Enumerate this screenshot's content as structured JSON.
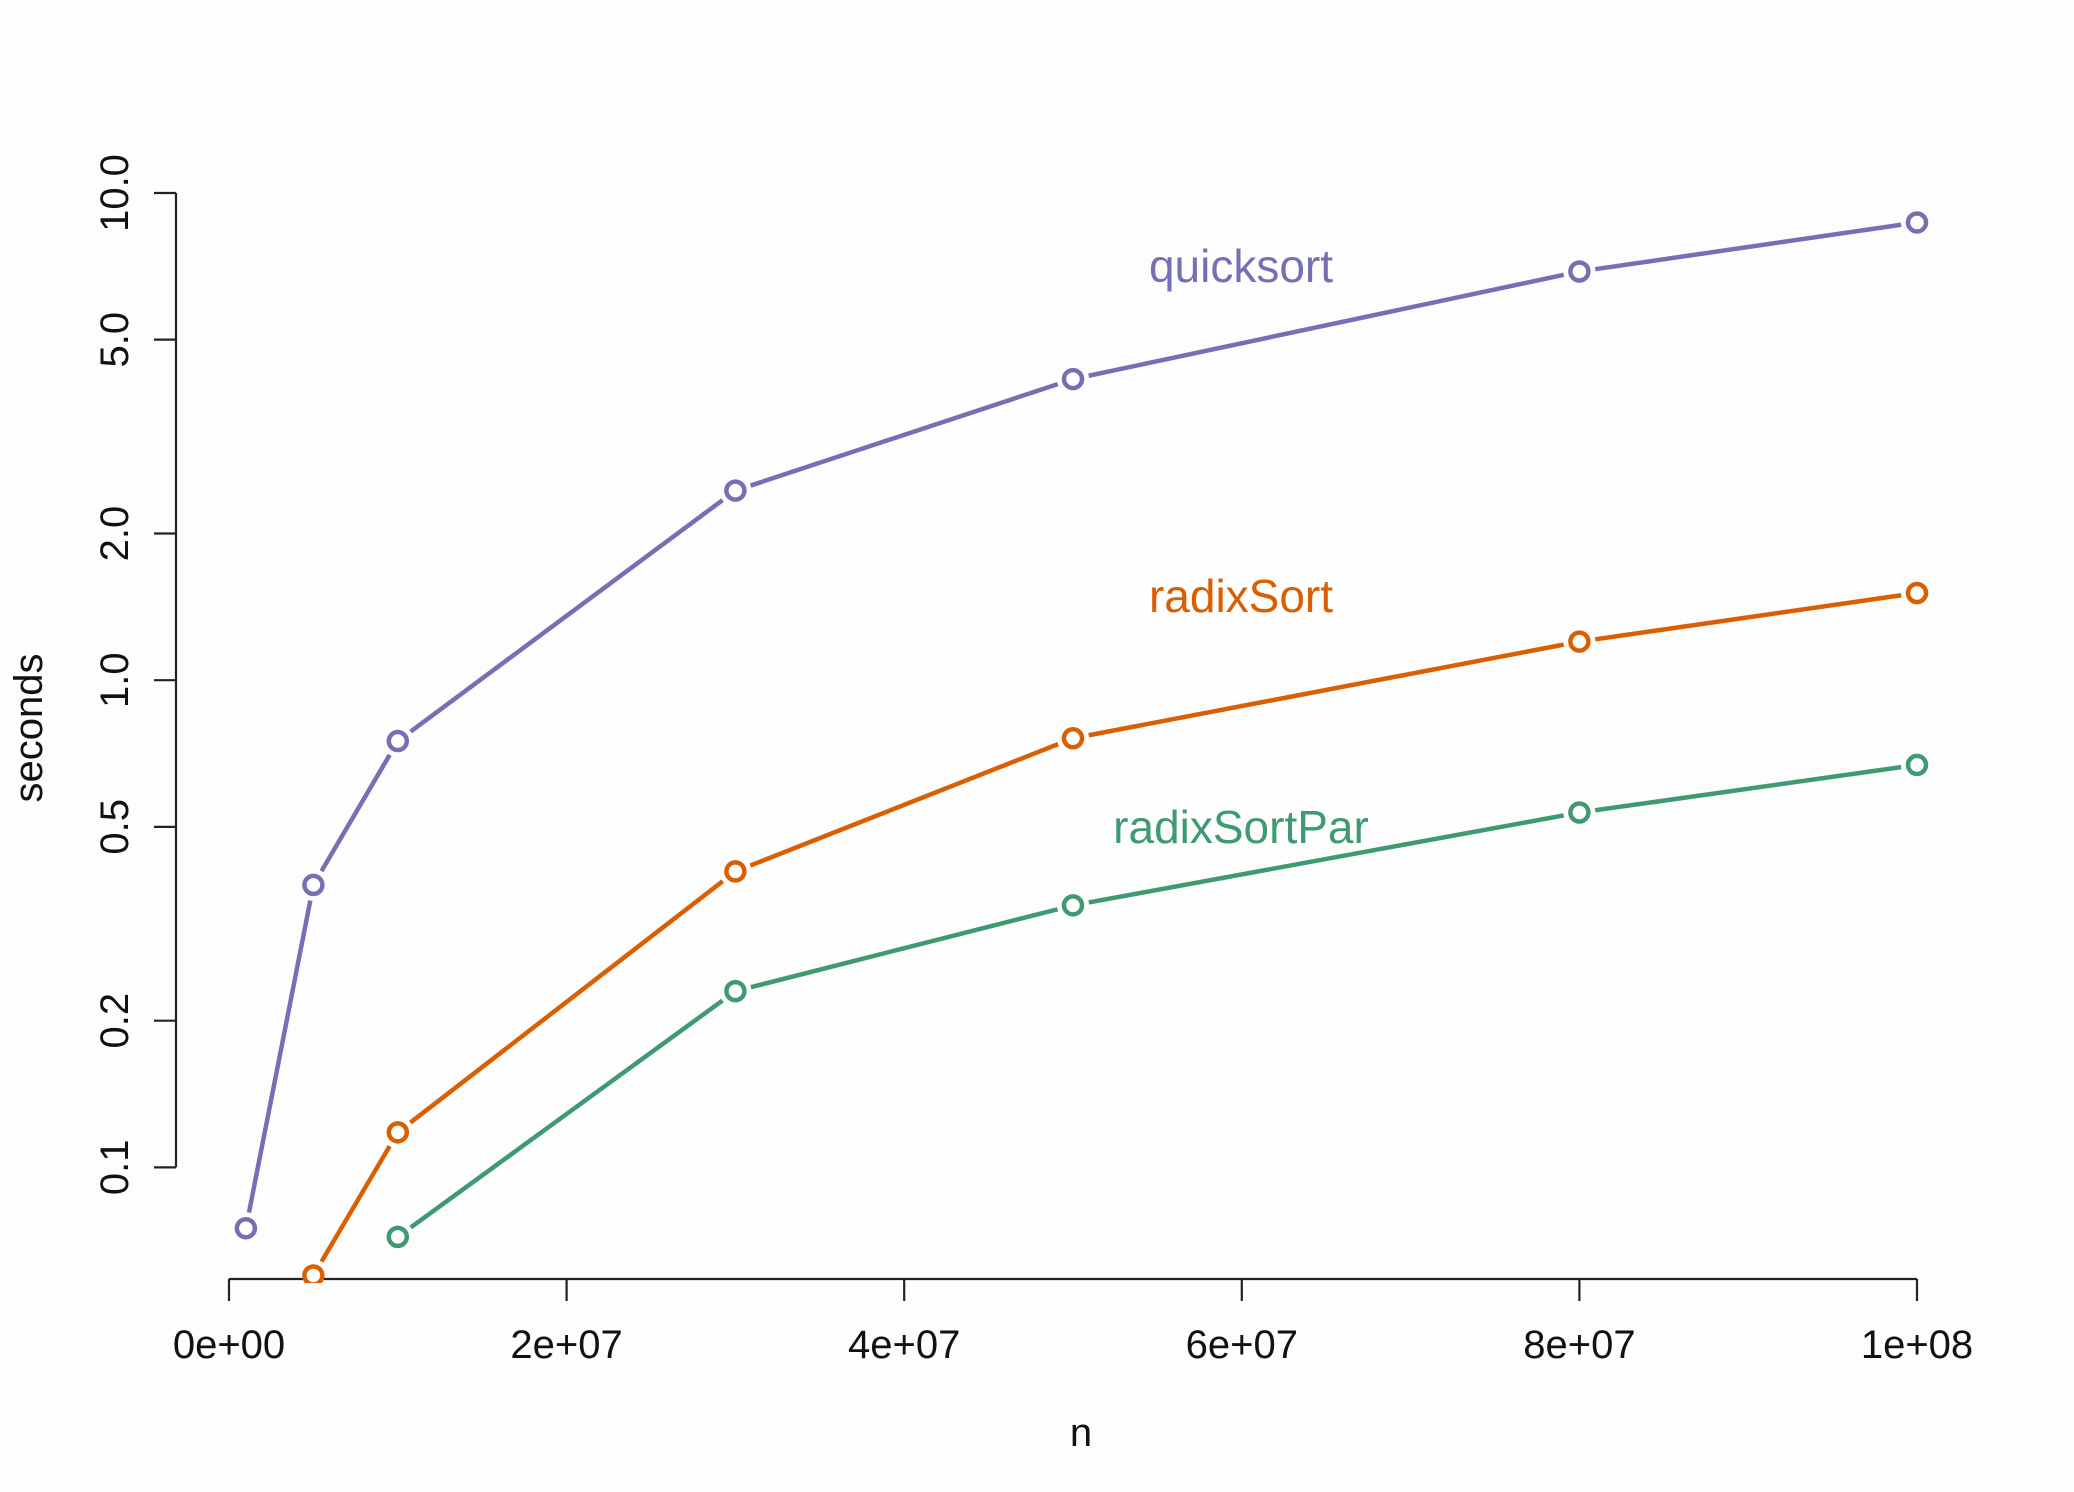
{
  "chart_data": {
    "type": "line",
    "xlabel": "n",
    "ylabel": "seconds",
    "x_scale": "linear",
    "y_scale": "log",
    "xlim": [
      0,
      100000000
    ],
    "ylim": [
      0.059,
      10
    ],
    "x_ticks": [
      0,
      20000000,
      40000000,
      60000000,
      80000000,
      100000000
    ],
    "x_tick_labels": [
      "0e+00",
      "2e+07",
      "4e+07",
      "6e+07",
      "8e+07",
      "1e+08"
    ],
    "y_ticks": [
      0.1,
      0.2,
      0.5,
      1.0,
      2.0,
      5.0,
      10.0
    ],
    "y_tick_labels": [
      "0.1",
      "0.2",
      "0.5",
      "1.0",
      "2.0",
      "5.0",
      "10.0"
    ],
    "grid": false,
    "legend": "inline labels",
    "series": [
      {
        "name": "quicksort",
        "color": "#7570b3",
        "x": [
          1000000,
          5000000,
          10000000,
          30000000,
          50000000,
          80000000,
          100000000
        ],
        "values": [
          0.075,
          0.38,
          0.75,
          2.45,
          4.15,
          6.9,
          8.7
        ]
      },
      {
        "name": "radixSort",
        "color": "#d95f02",
        "x": [
          5000000,
          10000000,
          30000000,
          50000000,
          80000000,
          100000000
        ],
        "values": [
          0.06,
          0.118,
          0.405,
          0.76,
          1.2,
          1.51
        ]
      },
      {
        "name": "radixSortPar",
        "color": "#3f9a72",
        "x": [
          10000000,
          30000000,
          50000000,
          80000000,
          100000000
        ],
        "values": [
          0.072,
          0.23,
          0.345,
          0.535,
          0.67
        ]
      }
    ]
  }
}
